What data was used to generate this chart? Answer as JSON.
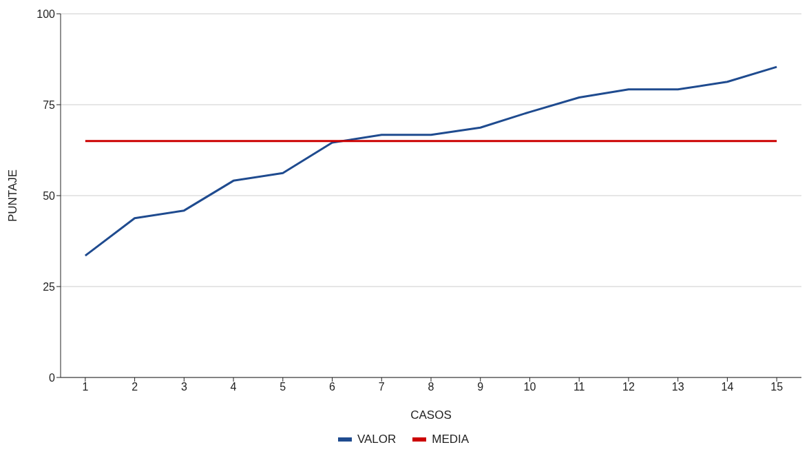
{
  "chart_data": {
    "type": "line",
    "xlabel": "CASOS",
    "ylabel": "PUNTAJE",
    "x": [
      1,
      2,
      3,
      4,
      5,
      6,
      7,
      8,
      9,
      10,
      11,
      12,
      13,
      14,
      15
    ],
    "xlim": [
      0.5,
      15.5
    ],
    "xticks": [
      1,
      2,
      3,
      4,
      5,
      6,
      7,
      8,
      9,
      10,
      11,
      12,
      13,
      14,
      15
    ],
    "series": [
      {
        "name": "VALOR",
        "color": "#1f4b8f",
        "values": [
          33.5,
          43.8,
          45.9,
          54.1,
          56.2,
          64.6,
          66.7,
          66.7,
          68.7,
          73,
          77,
          79.2,
          79.2,
          81.3,
          85.4
        ]
      },
      {
        "name": "MEDIA",
        "color": "#cc0000",
        "values": [
          65,
          65,
          65,
          65,
          65,
          65,
          65,
          65,
          65,
          65,
          65,
          65,
          65,
          65,
          65
        ]
      }
    ],
    "ylim": [
      0,
      100
    ],
    "yticks": [
      0,
      25,
      50,
      75,
      100
    ],
    "grid": "y",
    "legend": "bottom",
    "marker": "none",
    "line_style": "solid"
  }
}
